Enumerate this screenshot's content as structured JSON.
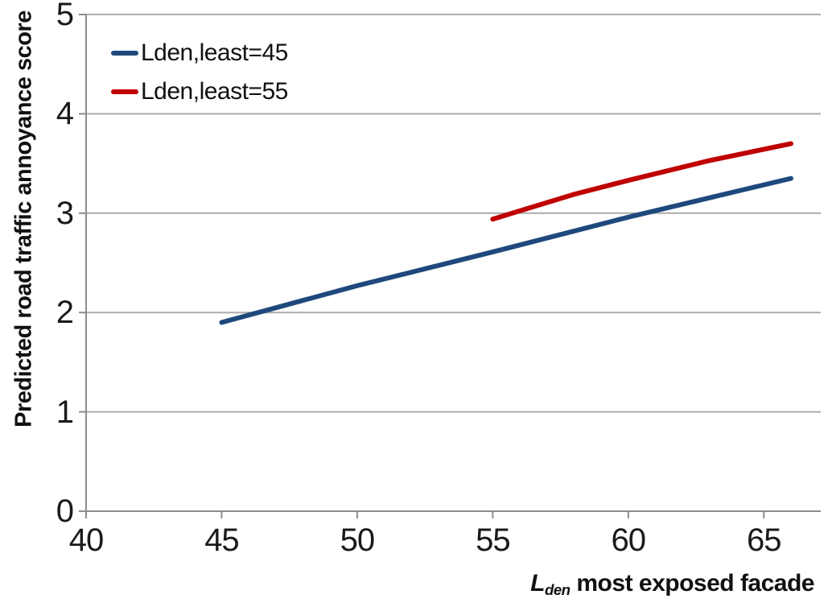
{
  "chart_data": {
    "type": "line",
    "title": "",
    "ylabel": "Predicted road traffic annoyance score",
    "xlabel_symbol": "L",
    "xlabel_subscript": "den",
    "xlabel_text": " most exposed facade",
    "xlim": [
      40,
      67.1
    ],
    "ylim": [
      0,
      5
    ],
    "xticks": [
      40,
      45,
      50,
      55,
      60,
      65
    ],
    "yticks": [
      0,
      1,
      2,
      3,
      4,
      5
    ],
    "grid": "horizontal-only",
    "legend_position": "top-left-inside",
    "series": [
      {
        "name": "Lden,least=45",
        "color": "#1F497D",
        "x": [
          45,
          50,
          55,
          60,
          66
        ],
        "y": [
          1.9,
          2.27,
          2.61,
          2.96,
          3.35
        ]
      },
      {
        "name": "Lden,least=55",
        "color": "#C00000",
        "x": [
          55,
          58,
          60,
          63,
          66
        ],
        "y": [
          2.94,
          3.19,
          3.33,
          3.53,
          3.7
        ]
      }
    ],
    "axis_color": "#8C8C8C",
    "gridline_color": "#ACACAC",
    "tick_label_color": "#1a1a1a"
  }
}
